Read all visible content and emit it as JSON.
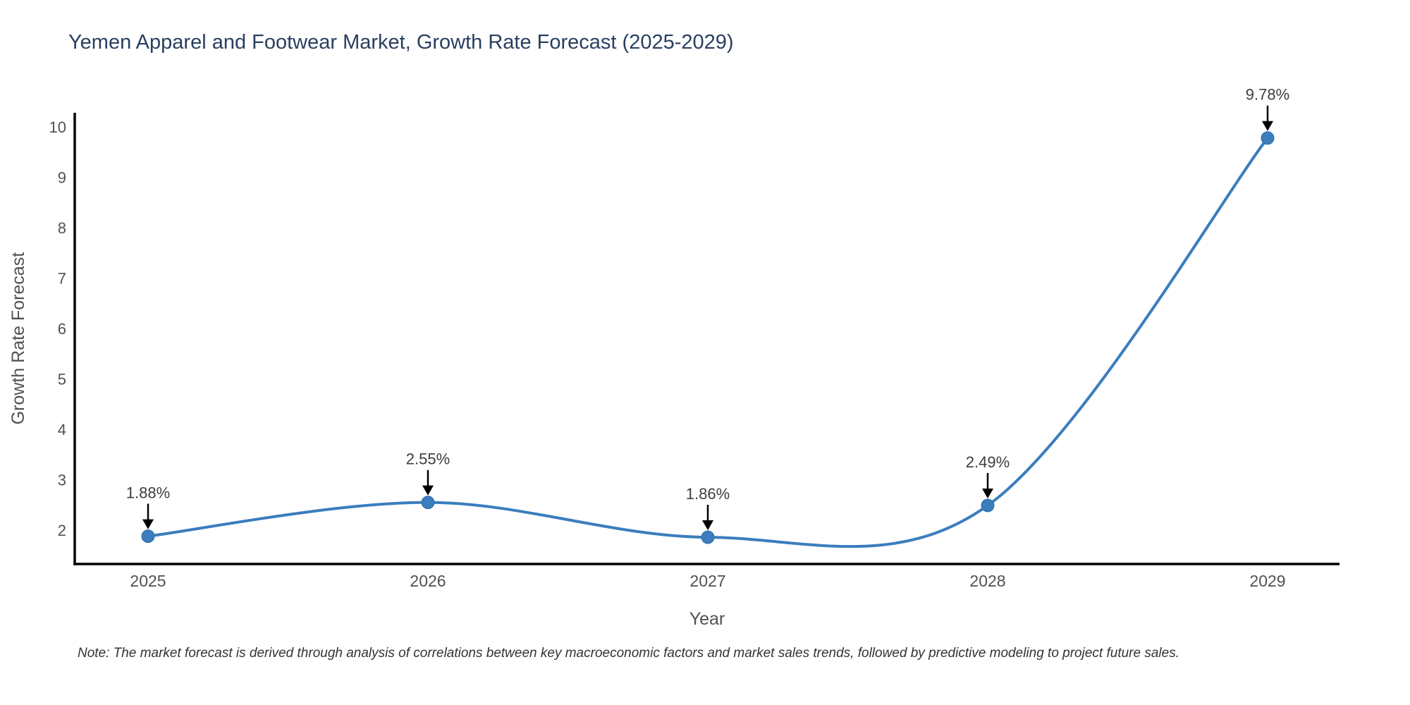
{
  "title": {
    "text": "Yemen Apparel and Footwear Market, Growth Rate Forecast (2025-2029)",
    "color": "#2a3f5f"
  },
  "note": {
    "text": "Note: The market forecast is derived through analysis of correlations between key macroeconomic factors and market sales trends, followed by predictive modeling to project future sales."
  },
  "chart_data": {
    "type": "line",
    "line_shape": "spline",
    "x": [
      2025,
      2026,
      2027,
      2028,
      2029
    ],
    "series": [
      {
        "name": "Growth Rate Forecast",
        "values": [
          1.88,
          2.55,
          1.86,
          2.49,
          9.78
        ]
      }
    ],
    "point_labels": [
      "1.88%",
      "2.55%",
      "1.86%",
      "2.49%",
      "9.78%"
    ],
    "title": "Yemen Apparel and Footwear Market, Growth Rate Forecast (2025-2029)",
    "xlabel": "Year",
    "ylabel": "Growth Rate Forecast",
    "y_ticks": [
      2,
      3,
      4,
      5,
      6,
      7,
      8,
      9,
      10
    ],
    "ylim": [
      1.33,
      10.28
    ],
    "grid": false,
    "legend": false,
    "colors": {
      "line": "#3b7dbd",
      "marker": "#3b7dbd",
      "marker_edge": "#2f6da8",
      "axis_line": "#000000",
      "tick_label": "#515151",
      "axis_title": "#515151",
      "annotation_text": "#3d3d3d",
      "annotation_arrow": "#000000"
    }
  }
}
